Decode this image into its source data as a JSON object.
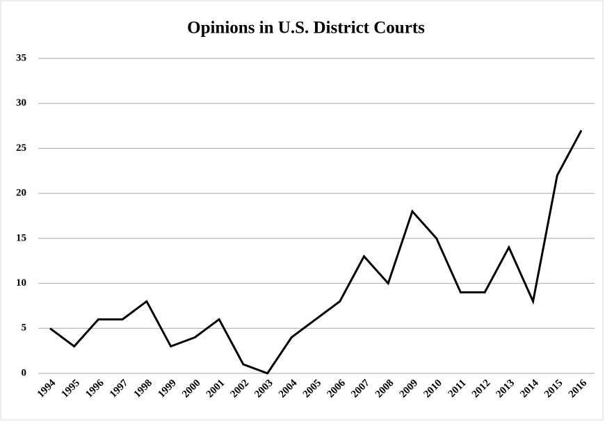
{
  "chart_data": {
    "type": "line",
    "title": "Opinions in U.S. District Courts",
    "categories": [
      "1994",
      "1995",
      "1996",
      "1997",
      "1998",
      "1999",
      "2000",
      "2001",
      "2002",
      "2003",
      "2004",
      "2005",
      "2006",
      "2007",
      "2008",
      "2009",
      "2010",
      "2011",
      "2012",
      "2013",
      "2014",
      "2015",
      "2016"
    ],
    "series": [
      {
        "name": "Opinions",
        "color": "#000000",
        "values": [
          5,
          3,
          6,
          6,
          8,
          3,
          4,
          6,
          1,
          0,
          4,
          6,
          8,
          13,
          10,
          18,
          15,
          9,
          9,
          14,
          8,
          22,
          27
        ]
      }
    ],
    "ylim": [
      0,
      35
    ],
    "yticks": [
      0,
      5,
      10,
      15,
      20,
      25,
      30,
      35
    ],
    "grid": true
  }
}
